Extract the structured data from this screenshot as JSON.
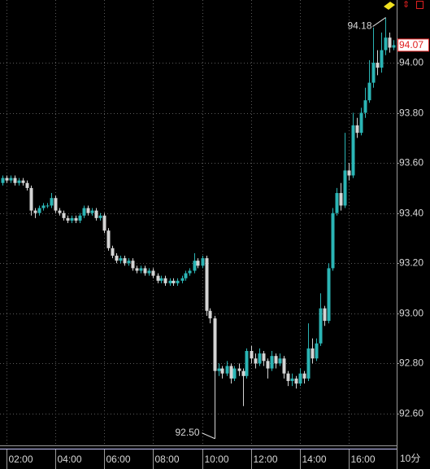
{
  "chart_data": {
    "type": "candlestick",
    "period_label": "10分",
    "x": [
      1.83,
      2,
      2.17,
      2.33,
      2.5,
      2.67,
      2.83,
      3,
      3.17,
      3.33,
      3.5,
      3.67,
      3.83,
      4,
      4.17,
      4.33,
      4.5,
      4.67,
      4.83,
      5,
      5.17,
      5.33,
      5.5,
      5.67,
      5.83,
      6,
      6.17,
      6.33,
      6.5,
      6.67,
      6.83,
      7,
      7.17,
      7.33,
      7.5,
      7.67,
      7.83,
      8,
      8.17,
      8.33,
      8.5,
      8.67,
      8.83,
      9,
      9.17,
      9.33,
      9.5,
      9.67,
      9.83,
      10,
      10.17,
      10.33,
      10.5,
      10.67,
      10.83,
      11,
      11.17,
      11.33,
      11.5,
      11.67,
      11.83,
      12,
      12.17,
      12.33,
      12.5,
      12.67,
      12.83,
      13,
      13.17,
      13.33,
      13.5,
      13.67,
      13.83,
      14,
      14.17,
      14.33,
      14.5,
      14.67,
      14.83,
      15,
      15.17,
      15.33,
      15.5,
      15.67,
      15.83,
      16,
      16.17,
      16.33,
      16.5,
      16.67,
      16.83,
      17,
      17.17,
      17.33,
      17.5,
      17.67,
      17.83
    ],
    "open": [
      93.52,
      93.54,
      93.53,
      93.54,
      93.52,
      93.53,
      93.52,
      93.5,
      93.41,
      93.4,
      93.42,
      93.43,
      93.43,
      93.46,
      93.41,
      93.4,
      93.38,
      93.37,
      93.38,
      93.37,
      93.39,
      93.42,
      93.4,
      93.41,
      93.38,
      93.39,
      93.33,
      93.26,
      93.23,
      93.21,
      93.22,
      93.2,
      93.21,
      93.18,
      93.17,
      93.18,
      93.16,
      93.17,
      93.15,
      93.13,
      93.14,
      93.12,
      93.13,
      93.12,
      93.13,
      93.14,
      93.16,
      93.17,
      93.21,
      93.19,
      93.22,
      93.01,
      92.98,
      92.77,
      92.78,
      92.76,
      92.79,
      92.74,
      92.78,
      92.77,
      92.75,
      92.85,
      92.82,
      92.8,
      92.84,
      92.81,
      92.78,
      92.83,
      92.8,
      92.82,
      92.76,
      92.73,
      92.74,
      92.72,
      92.76,
      92.74,
      92.86,
      92.82,
      92.88,
      93.02,
      92.97,
      93.18,
      93.4,
      93.48,
      93.43,
      93.57,
      93.55,
      93.75,
      93.72,
      93.8,
      93.85,
      93.92,
      94.0,
      93.98,
      94.05,
      94.1,
      94.06
    ],
    "high": [
      93.55,
      93.55,
      93.55,
      93.55,
      93.54,
      93.54,
      93.53,
      93.51,
      93.42,
      93.43,
      93.44,
      93.44,
      93.48,
      93.47,
      93.42,
      93.41,
      93.39,
      93.39,
      93.39,
      93.4,
      93.43,
      93.43,
      93.42,
      93.42,
      93.4,
      93.4,
      93.34,
      93.27,
      93.24,
      93.23,
      93.23,
      93.22,
      93.22,
      93.19,
      93.19,
      93.19,
      93.18,
      93.18,
      93.16,
      93.15,
      93.15,
      93.14,
      93.14,
      93.14,
      93.15,
      93.17,
      93.18,
      93.24,
      93.22,
      93.23,
      93.23,
      93.02,
      92.99,
      92.8,
      92.79,
      92.81,
      92.8,
      92.79,
      92.8,
      92.78,
      92.86,
      92.87,
      92.84,
      92.86,
      92.85,
      92.82,
      92.85,
      92.84,
      92.84,
      92.83,
      92.77,
      92.76,
      92.75,
      92.78,
      92.77,
      92.96,
      92.9,
      92.9,
      93.08,
      93.03,
      93.2,
      93.42,
      93.5,
      93.52,
      93.72,
      93.6,
      93.8,
      93.78,
      93.82,
      93.9,
      94.01,
      94.14,
      94.05,
      94.12,
      94.18,
      94.12,
      94.09
    ],
    "low": [
      93.51,
      93.52,
      93.52,
      93.51,
      93.51,
      93.51,
      93.49,
      93.39,
      93.38,
      93.39,
      93.41,
      93.42,
      93.42,
      93.4,
      93.39,
      93.37,
      93.36,
      93.36,
      93.36,
      93.36,
      93.38,
      93.39,
      93.39,
      93.37,
      93.37,
      93.32,
      93.25,
      93.22,
      93.2,
      93.2,
      93.19,
      93.19,
      93.17,
      93.16,
      93.16,
      93.15,
      93.15,
      93.14,
      93.12,
      93.12,
      93.11,
      93.11,
      93.11,
      93.11,
      93.12,
      93.13,
      93.15,
      93.16,
      93.18,
      93.18,
      92.99,
      92.96,
      92.5,
      92.75,
      92.74,
      92.75,
      92.72,
      92.73,
      92.75,
      92.63,
      92.74,
      92.8,
      92.78,
      92.79,
      92.79,
      92.74,
      92.77,
      92.78,
      92.79,
      92.74,
      92.71,
      92.71,
      92.7,
      92.71,
      92.72,
      92.73,
      92.8,
      92.81,
      92.87,
      92.95,
      92.96,
      93.17,
      93.39,
      93.41,
      93.42,
      93.53,
      93.54,
      93.7,
      93.71,
      93.78,
      93.84,
      93.9,
      93.95,
      93.96,
      94.03,
      94.04,
      94.05
    ],
    "close": [
      93.54,
      93.53,
      93.54,
      93.52,
      93.53,
      93.52,
      93.5,
      93.41,
      93.4,
      93.42,
      93.43,
      93.43,
      93.46,
      93.41,
      93.4,
      93.38,
      93.37,
      93.38,
      93.37,
      93.39,
      93.42,
      93.4,
      93.41,
      93.38,
      93.39,
      93.33,
      93.26,
      93.23,
      93.21,
      93.22,
      93.2,
      93.21,
      93.18,
      93.17,
      93.18,
      93.16,
      93.17,
      93.15,
      93.13,
      93.14,
      93.12,
      93.13,
      93.12,
      93.13,
      93.14,
      93.16,
      93.17,
      93.21,
      93.19,
      93.22,
      93.01,
      92.98,
      92.77,
      92.78,
      92.76,
      92.79,
      92.74,
      92.78,
      92.77,
      92.75,
      92.85,
      92.82,
      92.8,
      92.84,
      92.81,
      92.78,
      92.83,
      92.8,
      92.82,
      92.76,
      92.73,
      92.74,
      92.72,
      92.76,
      92.74,
      92.86,
      92.82,
      92.88,
      93.02,
      92.97,
      93.18,
      93.4,
      93.48,
      93.43,
      93.57,
      93.55,
      93.75,
      93.72,
      93.8,
      93.85,
      93.92,
      94.0,
      93.98,
      94.05,
      94.1,
      94.06,
      94.07
    ],
    "up_color": "#2bb5b5",
    "down_color": "#d4d4d4",
    "xlim": [
      1.73,
      17.97
    ],
    "xticks": [
      {
        "value": 2,
        "label": "02:00"
      },
      {
        "value": 4,
        "label": "04:00"
      },
      {
        "value": 6,
        "label": "06:00"
      },
      {
        "value": 8,
        "label": "08:00"
      },
      {
        "value": 10,
        "label": "10:00"
      },
      {
        "value": 12,
        "label": "12:00"
      },
      {
        "value": 14,
        "label": "14:00"
      },
      {
        "value": 16,
        "label": "16:00"
      }
    ],
    "ylim": [
      92.47,
      94.25
    ],
    "yticks": [
      {
        "value": 92.6,
        "label": "92.60"
      },
      {
        "value": 92.8,
        "label": "92.80"
      },
      {
        "value": 93,
        "label": "93.00"
      },
      {
        "value": 93.2,
        "label": "93.20"
      },
      {
        "value": 93.4,
        "label": "93.40"
      },
      {
        "value": 93.6,
        "label": "93.60"
      },
      {
        "value": 93.8,
        "label": "93.80"
      },
      {
        "value": 94,
        "label": "94.00"
      }
    ],
    "grid": true,
    "high_marker": {
      "value": 94.18,
      "label": "94.18"
    },
    "low_marker": {
      "value": 92.5,
      "label": "92.50"
    },
    "last_price": {
      "value": 94.07,
      "label": "94.07"
    }
  }
}
